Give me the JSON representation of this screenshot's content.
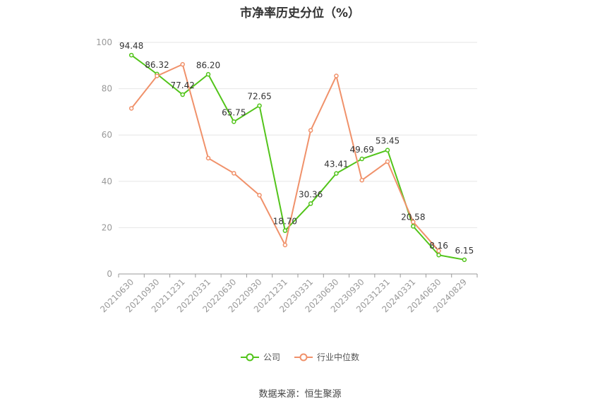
{
  "chart_data": {
    "type": "line",
    "title": "市净率历史分位（%）",
    "categories": [
      "20210630",
      "20210930",
      "20211231",
      "20220331",
      "20220630",
      "20220930",
      "20221231",
      "20230331",
      "20230630",
      "20230930",
      "20231231",
      "20240331",
      "20240630",
      "20240829"
    ],
    "series": [
      {
        "name": "公司",
        "color": "#52c41a",
        "values": [
          94.48,
          86.32,
          77.42,
          86.2,
          65.75,
          72.65,
          18.7,
          30.36,
          43.41,
          49.69,
          53.45,
          20.58,
          8.16,
          6.15
        ],
        "labels": [
          "94.48",
          "86.32",
          "77.42",
          "86.20",
          "65.75",
          "72.65",
          "18.70",
          "30.36",
          "43.41",
          "49.69",
          "53.45",
          "20.58",
          "8.16",
          "6.15"
        ]
      },
      {
        "name": "行业中位数",
        "color": "#f0916a",
        "values": [
          71.5,
          85.5,
          90.5,
          50.0,
          43.5,
          34.0,
          12.5,
          62.0,
          85.5,
          40.5,
          48.5,
          22.5,
          10.0,
          null
        ]
      }
    ],
    "ylim": [
      0,
      100
    ],
    "yticks": [
      0,
      20,
      40,
      60,
      80,
      100
    ],
    "grid": true,
    "legend_position": "bottom"
  },
  "source": "数据来源：恒生聚源"
}
